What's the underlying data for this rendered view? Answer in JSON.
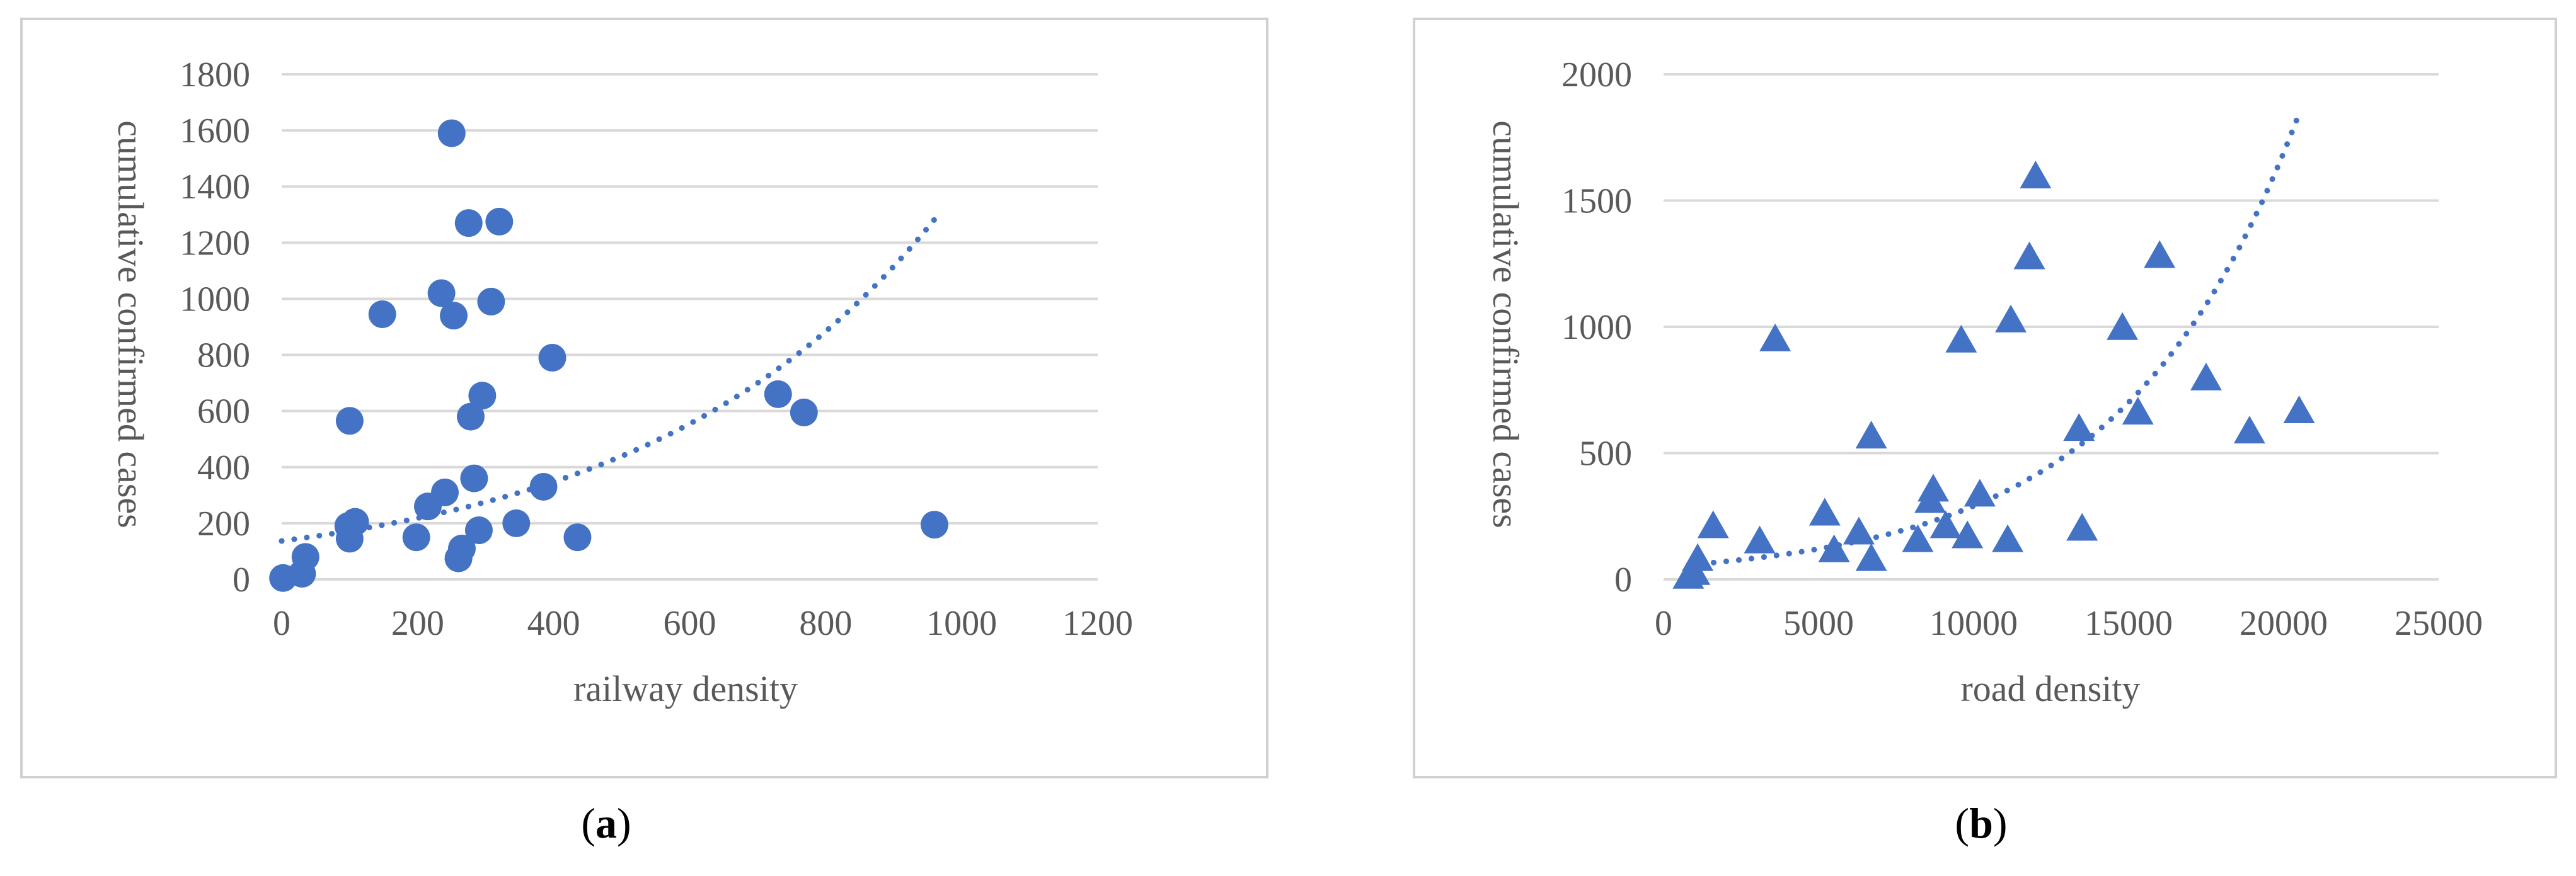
{
  "colors": {
    "marker": "#4472C4",
    "trend": "#4472C4",
    "grid": "#D9D9D9",
    "frame": "#D0D0D0",
    "text": "#595959"
  },
  "chart_data": [
    {
      "type": "scatter",
      "caption_letter": "a",
      "marker": "circle",
      "title": "",
      "xlabel": "railway density",
      "ylabel": "cumulative confirmed cases",
      "xlim": [
        0,
        1200
      ],
      "ylim": [
        0,
        1800
      ],
      "xticks": [
        0,
        200,
        400,
        600,
        800,
        1000,
        1200
      ],
      "yticks": [
        0,
        200,
        400,
        600,
        800,
        1000,
        1200,
        1400,
        1600,
        1800
      ],
      "grid": true,
      "trendline": {
        "type": "exponential",
        "a": 137,
        "b": 0.00233,
        "x_range": [
          0,
          960
        ]
      },
      "points": [
        [
          2,
          5
        ],
        [
          30,
          20
        ],
        [
          35,
          80
        ],
        [
          98,
          190
        ],
        [
          100,
          145
        ],
        [
          100,
          565
        ],
        [
          108,
          205
        ],
        [
          148,
          945
        ],
        [
          198,
          150
        ],
        [
          215,
          260
        ],
        [
          235,
          1020
        ],
        [
          240,
          310
        ],
        [
          250,
          1590
        ],
        [
          253,
          940
        ],
        [
          260,
          75
        ],
        [
          265,
          110
        ],
        [
          275,
          1270
        ],
        [
          278,
          580
        ],
        [
          283,
          360
        ],
        [
          290,
          175
        ],
        [
          295,
          655
        ],
        [
          308,
          990
        ],
        [
          320,
          1275
        ],
        [
          345,
          200
        ],
        [
          385,
          330
        ],
        [
          398,
          790
        ],
        [
          435,
          150
        ],
        [
          730,
          660
        ],
        [
          768,
          595
        ],
        [
          960,
          195
        ]
      ]
    },
    {
      "type": "scatter",
      "caption_letter": "b",
      "marker": "triangle",
      "title": "",
      "xlabel": "road density",
      "ylabel": "cumulative confirmed cases",
      "xlim": [
        0,
        25000
      ],
      "ylim": [
        0,
        2000
      ],
      "xticks": [
        0,
        5000,
        10000,
        15000,
        20000,
        25000
      ],
      "yticks": [
        0,
        500,
        1000,
        1500,
        2000
      ],
      "grid": true,
      "trendline": {
        "type": "exponential",
        "a": 50,
        "b": 0.000176,
        "x_range": [
          800,
          20500
        ]
      },
      "points": [
        [
          800,
          5
        ],
        [
          1000,
          20
        ],
        [
          1100,
          75
        ],
        [
          1600,
          205
        ],
        [
          3100,
          145
        ],
        [
          3600,
          945
        ],
        [
          5200,
          255
        ],
        [
          5500,
          110
        ],
        [
          6300,
          180
        ],
        [
          6700,
          75
        ],
        [
          6700,
          560
        ],
        [
          8200,
          150
        ],
        [
          8600,
          305
        ],
        [
          8700,
          350
        ],
        [
          9100,
          205
        ],
        [
          9600,
          940
        ],
        [
          9800,
          165
        ],
        [
          10200,
          330
        ],
        [
          11100,
          150
        ],
        [
          11200,
          1020
        ],
        [
          11800,
          1270
        ],
        [
          12000,
          1590
        ],
        [
          13400,
          590
        ],
        [
          13500,
          195
        ],
        [
          14800,
          990
        ],
        [
          15300,
          655
        ],
        [
          16000,
          1275
        ],
        [
          17500,
          790
        ],
        [
          18900,
          580
        ],
        [
          20500,
          660
        ]
      ]
    }
  ]
}
